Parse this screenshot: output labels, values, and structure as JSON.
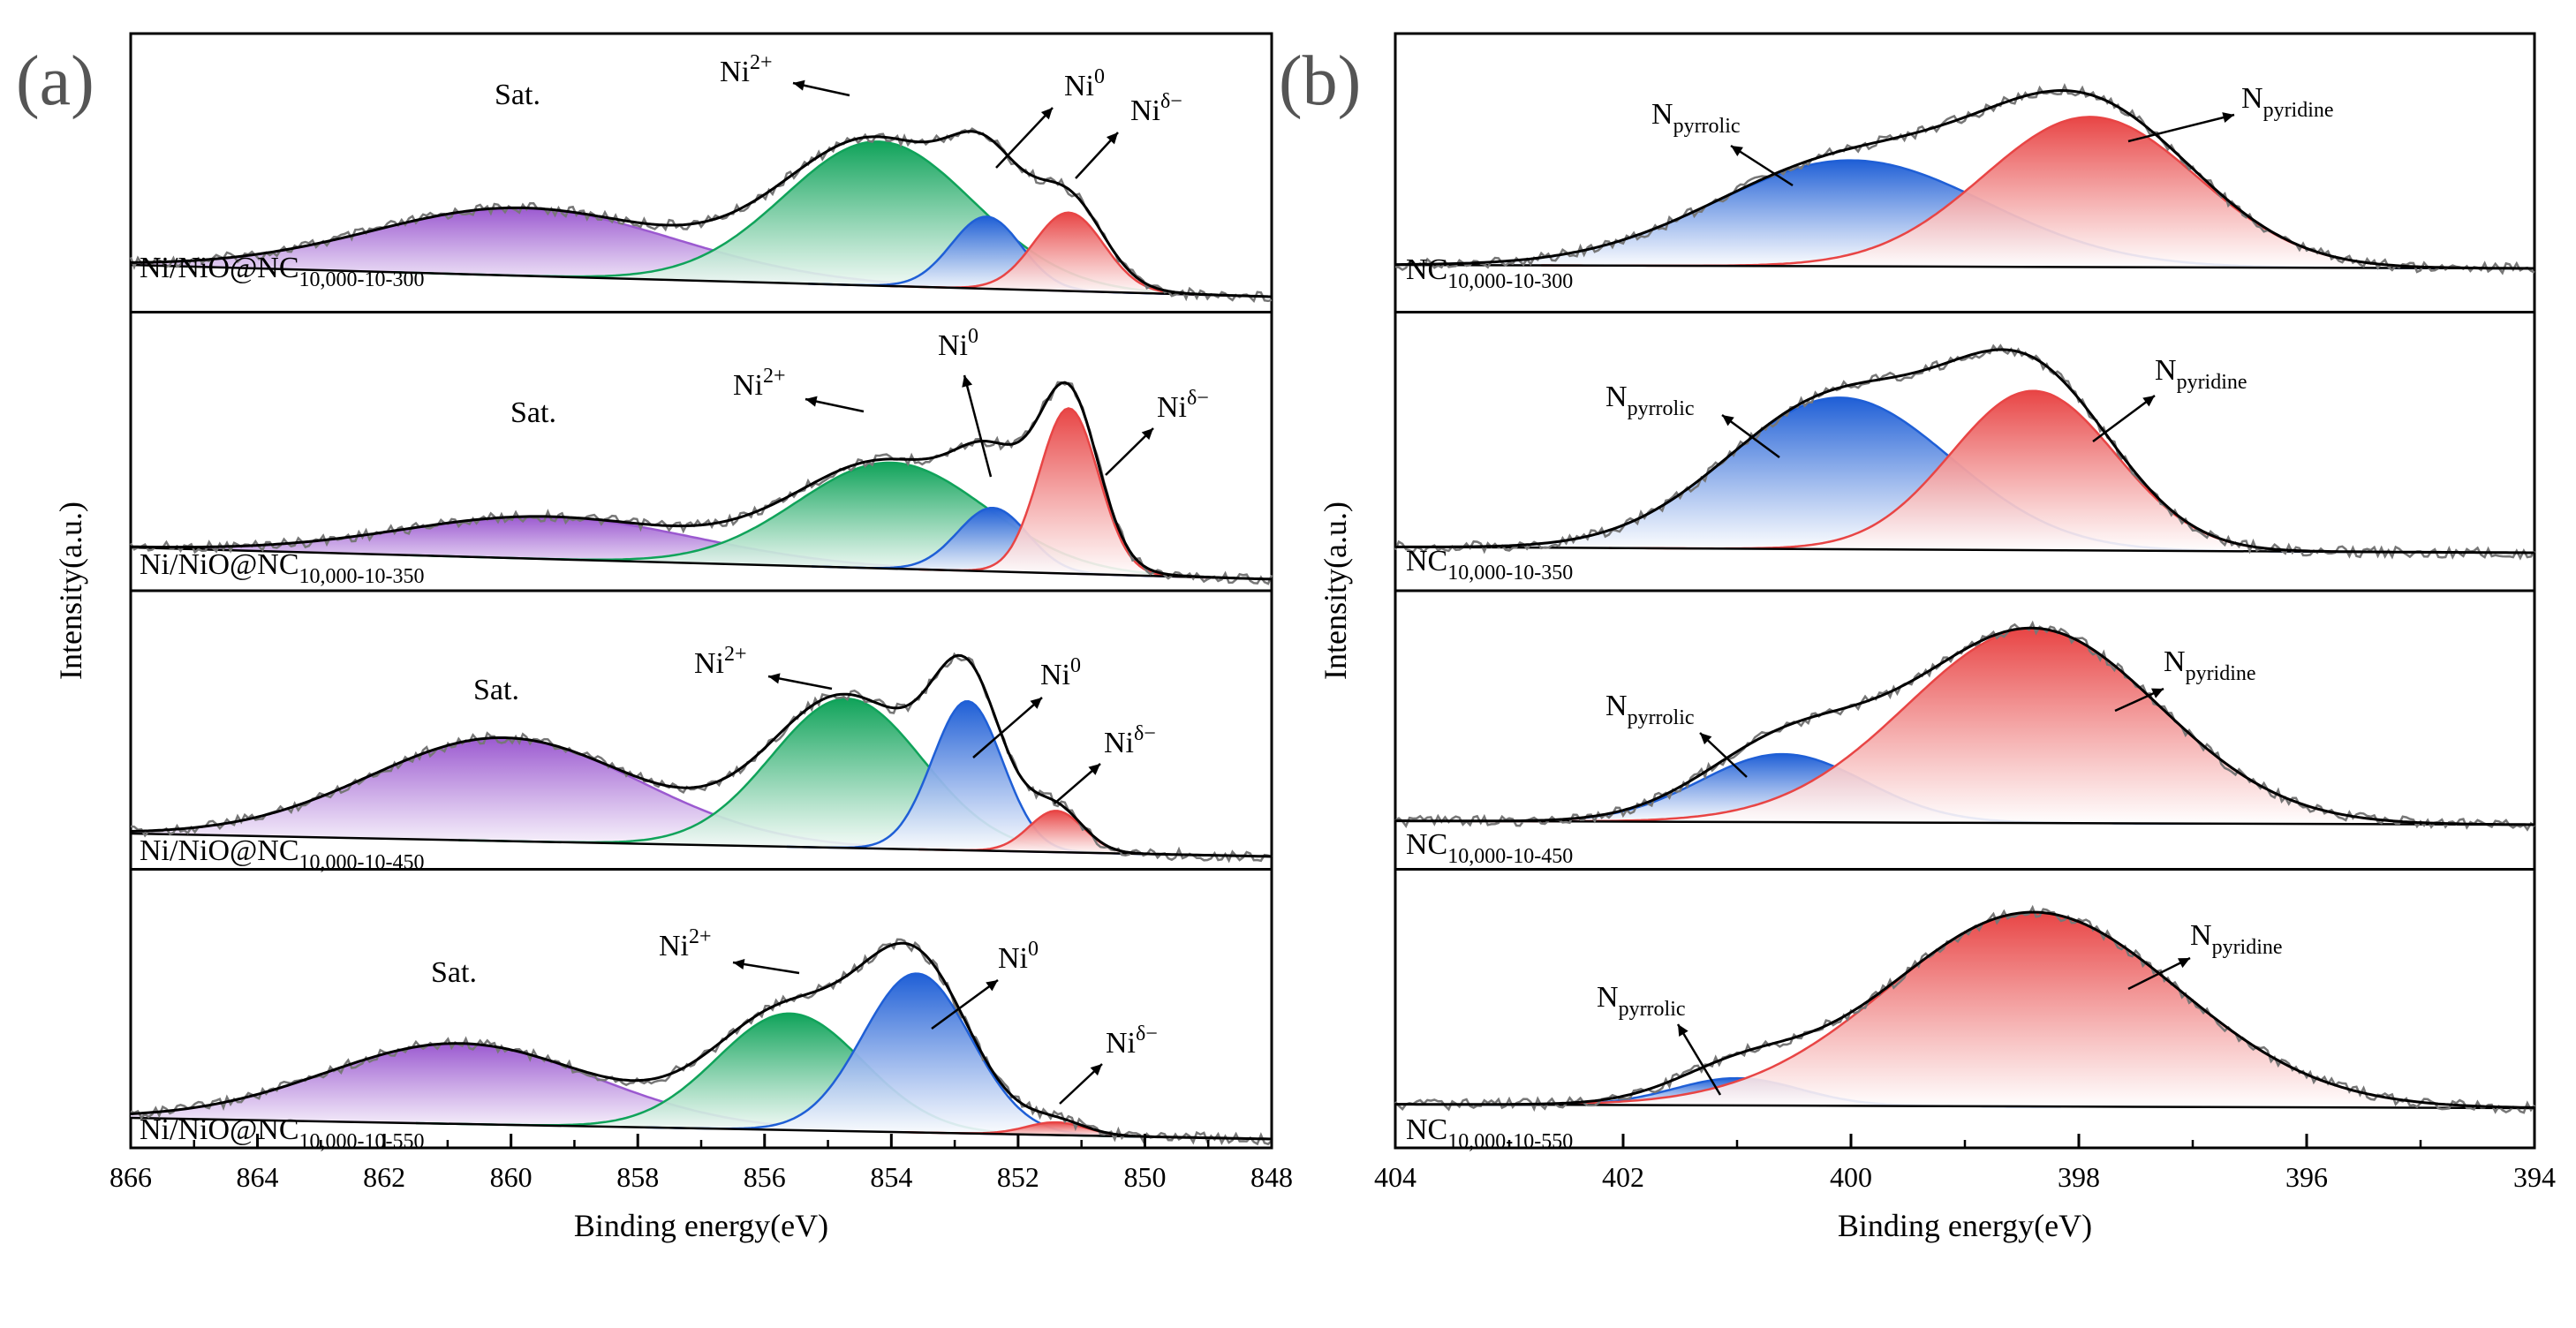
{
  "figure": {
    "panel_a_label": "(a)",
    "panel_b_label": "(b)"
  },
  "chart_data": [
    {
      "type": "line",
      "panel": "(a)",
      "xlabel": "Binding energy(eV)",
      "ylabel": "Intensity(a.u.)",
      "xlim": [
        866,
        848
      ],
      "xticks": [
        "866",
        "864",
        "862",
        "860",
        "858",
        "856",
        "854",
        "852",
        "850",
        "848"
      ],
      "subplots": [
        {
          "name": "Ni/NiO@NC10,000-10-300",
          "sample_label": {
            "main": "Ni/NiO@NC",
            "sub": "10,000-10-300"
          },
          "baseline": [
            0.15,
            0.0
          ],
          "peaks": [
            {
              "species": "Sat.",
              "center": 859.8,
              "fwhm": 5.6,
              "height": 0.32,
              "color": "#9b59d0"
            },
            {
              "species": "Ni2+",
              "center": 854.2,
              "fwhm": 3.5,
              "height": 0.68,
              "color": "#10a35a"
            },
            {
              "species": "Ni0",
              "center": 852.5,
              "fwhm": 1.3,
              "height": 0.34,
              "color": "#1f5fd6"
            },
            {
              "species": "Niδ−",
              "center": 851.2,
              "fwhm": 1.3,
              "height": 0.37,
              "color": "#e84545"
            }
          ],
          "annotations": [
            {
              "label": "Sat.",
              "base": "Sat.",
              "sup": ""
            },
            {
              "label": "Ni2+",
              "base": "Ni",
              "sup": "2+"
            },
            {
              "label": "Ni0",
              "base": "Ni",
              "sup": "0"
            },
            {
              "label": "Niδ−",
              "base": "Ni",
              "sup": "δ−"
            }
          ]
        },
        {
          "name": "Ni/NiO@NC10,000-10-350",
          "sample_label": {
            "main": "Ni/NiO@NC",
            "sub": "10,000-10-350"
          },
          "baseline": [
            0.15,
            0.0
          ],
          "peaks": [
            {
              "species": "Sat.",
              "center": 859.4,
              "fwhm": 5.4,
              "height": 0.2,
              "color": "#9b59d0"
            },
            {
              "species": "Ni2+",
              "center": 854.0,
              "fwhm": 3.5,
              "height": 0.5,
              "color": "#10a35a"
            },
            {
              "species": "Ni0",
              "center": 852.4,
              "fwhm": 1.3,
              "height": 0.3,
              "color": "#1f5fd6"
            },
            {
              "species": "Niδ−",
              "center": 851.2,
              "fwhm": 1.1,
              "height": 0.78,
              "color": "#e84545"
            }
          ],
          "annotations": [
            {
              "label": "Sat.",
              "base": "Sat.",
              "sup": ""
            },
            {
              "label": "Ni2+",
              "base": "Ni",
              "sup": "2+"
            },
            {
              "label": "Ni0",
              "base": "Ni",
              "sup": "0"
            },
            {
              "label": "Niδ−",
              "base": "Ni",
              "sup": "δ−"
            }
          ]
        },
        {
          "name": "Ni/NiO@NC10,000-10-450",
          "sample_label": {
            "main": "Ni/NiO@NC",
            "sub": "10,000-10-450"
          },
          "baseline": [
            0.1,
            0.0
          ],
          "peaks": [
            {
              "species": "Sat.",
              "center": 860.1,
              "fwhm": 5.0,
              "height": 0.45,
              "color": "#9b59d0"
            },
            {
              "species": "Ni2+",
              "center": 854.7,
              "fwhm": 2.8,
              "height": 0.65,
              "color": "#10a35a"
            },
            {
              "species": "Ni0",
              "center": 852.8,
              "fwhm": 1.3,
              "height": 0.65,
              "color": "#1f5fd6"
            },
            {
              "species": "Niδ−",
              "center": 851.4,
              "fwhm": 1.0,
              "height": 0.18,
              "color": "#e84545"
            }
          ],
          "annotations": [
            {
              "label": "Sat.",
              "base": "Sat.",
              "sup": ""
            },
            {
              "label": "Ni2+",
              "base": "Ni",
              "sup": "2+"
            },
            {
              "label": "Ni0",
              "base": "Ni",
              "sup": "0"
            },
            {
              "label": "Niδ−",
              "base": "Ni",
              "sup": "δ−"
            }
          ]
        },
        {
          "name": "Ni/NiO@NC10,000-10-550",
          "sample_label": {
            "main": "Ni/NiO@NC",
            "sub": "10,000-10-550"
          },
          "baseline": [
            0.1,
            0.0
          ],
          "peaks": [
            {
              "species": "Sat.",
              "center": 860.8,
              "fwhm": 5.0,
              "height": 0.38,
              "color": "#9b59d0"
            },
            {
              "species": "Ni2+",
              "center": 855.6,
              "fwhm": 2.7,
              "height": 0.55,
              "color": "#10a35a"
            },
            {
              "species": "Ni0",
              "center": 853.6,
              "fwhm": 2.0,
              "height": 0.75,
              "color": "#1f5fd6"
            },
            {
              "species": "Niδ−",
              "center": 851.4,
              "fwhm": 1.1,
              "height": 0.06,
              "color": "#e84545"
            }
          ],
          "annotations": [
            {
              "label": "Sat.",
              "base": "Sat.",
              "sup": ""
            },
            {
              "label": "Ni2+",
              "base": "Ni",
              "sup": "2+"
            },
            {
              "label": "Ni0",
              "base": "Ni",
              "sup": "0"
            },
            {
              "label": "Niδ−",
              "base": "Ni",
              "sup": "δ−"
            }
          ]
        }
      ]
    },
    {
      "type": "line",
      "panel": "(b)",
      "xlabel": "Binding energy(eV)",
      "ylabel": "Intensity(a.u.)",
      "xlim": [
        404,
        394
      ],
      "xticks": [
        "404",
        "402",
        "400",
        "398",
        "396",
        "394"
      ],
      "subplots": [
        {
          "name": "NC10,000-10-300",
          "sample_label": {
            "main": "NC",
            "sub": "10,000-10-300"
          },
          "baseline": [
            0.02,
            0.0
          ],
          "peaks": [
            {
              "species": "Npyrrolic",
              "center": 400.0,
              "fwhm": 2.8,
              "height": 0.6,
              "color": "#1f5fd6"
            },
            {
              "species": "Npyridine",
              "center": 397.9,
              "fwhm": 2.2,
              "height": 0.85,
              "color": "#e84545"
            }
          ],
          "annotations": [
            {
              "label": "Npyrrolic",
              "base": "N",
              "sub": "pyrrolic"
            },
            {
              "label": "Npyridine",
              "base": "N",
              "sub": "pyridine"
            }
          ]
        },
        {
          "name": "NC10,000-10-350",
          "sample_label": {
            "main": "NC",
            "sub": "10,000-10-350"
          },
          "baseline": [
            0.03,
            0.0
          ],
          "peaks": [
            {
              "species": "Npyrrolic",
              "center": 400.1,
              "fwhm": 2.3,
              "height": 0.78,
              "color": "#1f5fd6"
            },
            {
              "species": "Npyridine",
              "center": 398.4,
              "fwhm": 1.7,
              "height": 0.82,
              "color": "#e84545"
            }
          ],
          "annotations": [
            {
              "label": "Npyrrolic",
              "base": "N",
              "sub": "pyrrolic"
            },
            {
              "label": "Npyridine",
              "base": "N",
              "sub": "pyridine"
            }
          ]
        },
        {
          "name": "NC10,000-10-450",
          "sample_label": {
            "main": "NC",
            "sub": "10,000-10-450"
          },
          "baseline": [
            0.02,
            0.0
          ],
          "peaks": [
            {
              "species": "Npyrrolic",
              "center": 400.6,
              "fwhm": 1.7,
              "height": 0.35,
              "color": "#1f5fd6"
            },
            {
              "species": "Npyridine",
              "center": 398.4,
              "fwhm": 2.6,
              "height": 1.0,
              "color": "#e84545"
            }
          ],
          "annotations": [
            {
              "label": "Npyrrolic",
              "base": "N",
              "sub": "pyrrolic"
            },
            {
              "label": "Npyridine",
              "base": "N",
              "sub": "pyridine"
            }
          ]
        },
        {
          "name": "NC10,000-10-550",
          "sample_label": {
            "main": "NC",
            "sub": "10,000-10-550"
          },
          "baseline": [
            0.02,
            0.0
          ],
          "peaks": [
            {
              "species": "Npyrrolic",
              "center": 401.0,
              "fwhm": 1.3,
              "height": 0.14,
              "color": "#1f5fd6"
            },
            {
              "species": "Npyridine",
              "center": 398.4,
              "fwhm": 3.0,
              "height": 1.0,
              "color": "#e84545"
            }
          ],
          "annotations": [
            {
              "label": "Npyrrolic",
              "base": "N",
              "sub": "pyrrolic"
            },
            {
              "label": "Npyridine",
              "base": "N",
              "sub": "pyridine"
            }
          ]
        }
      ]
    }
  ]
}
